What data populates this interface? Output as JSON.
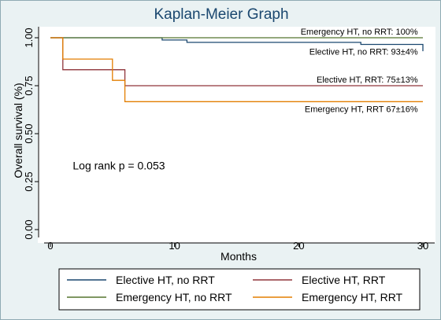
{
  "chart_data": {
    "type": "line",
    "title": "Kaplan-Meier Graph",
    "xlabel": "Months",
    "ylabel": "Overall survival (%)",
    "xlim": [
      0,
      30
    ],
    "ylim": [
      0,
      1
    ],
    "xticks": [
      0,
      10,
      20,
      30
    ],
    "yticks": [
      0,
      0.25,
      0.5,
      0.75,
      1
    ],
    "xtick_labels": [
      "0",
      "10",
      "20",
      "30"
    ],
    "ytick_labels": [
      "0.00",
      "0.25",
      "0.50",
      "0.75",
      "1.00"
    ],
    "grid": false,
    "legend_position": "bottom",
    "series": [
      {
        "name": "Elective HT, no RRT",
        "color": "#1a476f",
        "x": [
          0,
          9,
          9,
          11,
          11,
          25,
          25,
          30,
          30
        ],
        "y": [
          1.0,
          1.0,
          0.988,
          0.988,
          0.976,
          0.976,
          0.965,
          0.965,
          0.93
        ]
      },
      {
        "name": "Elective HT, RRT",
        "color": "#90353b",
        "x": [
          0,
          1,
          1,
          6,
          6,
          30
        ],
        "y": [
          1.0,
          1.0,
          0.833,
          0.833,
          0.75,
          0.75
        ]
      },
      {
        "name": "Emergency HT, no RRT",
        "color": "#55752f",
        "x": [
          0,
          30
        ],
        "y": [
          1.0,
          1.0
        ]
      },
      {
        "name": "Emergency HT, RRT",
        "color": "#e37e00",
        "x": [
          0,
          1,
          1,
          5,
          5,
          6,
          6,
          30
        ],
        "y": [
          1.0,
          1.0,
          0.889,
          0.889,
          0.778,
          0.778,
          0.667,
          0.667
        ]
      }
    ],
    "annotations": [
      {
        "text": "Emergency HT, no RRT: 100%",
        "x": 29.6,
        "y": 1.0,
        "anchor": "end",
        "position": "above"
      },
      {
        "text": "Elective HT, no RRT: 93±4%",
        "x": 29.6,
        "y": 0.965,
        "anchor": "end",
        "position": "below"
      },
      {
        "text": "Elective HT, RRT: 75±13%",
        "x": 29.6,
        "y": 0.75,
        "anchor": "end",
        "position": "above"
      },
      {
        "text": "Emergency HT, RRT 67±16%",
        "x": 29.6,
        "y": 0.667,
        "anchor": "end",
        "position": "below"
      },
      {
        "text": "Log rank p = 0.053",
        "x": 1.8,
        "y": 0.335,
        "anchor": "start",
        "position": "center"
      }
    ],
    "legend": [
      {
        "label": "Elective HT, no RRT",
        "color": "#1a476f"
      },
      {
        "label": "Elective HT, RRT",
        "color": "#90353b"
      },
      {
        "label": "Emergency HT, no RRT",
        "color": "#55752f"
      },
      {
        "label": "Emergency HT, RRT",
        "color": "#e37e00"
      }
    ]
  }
}
